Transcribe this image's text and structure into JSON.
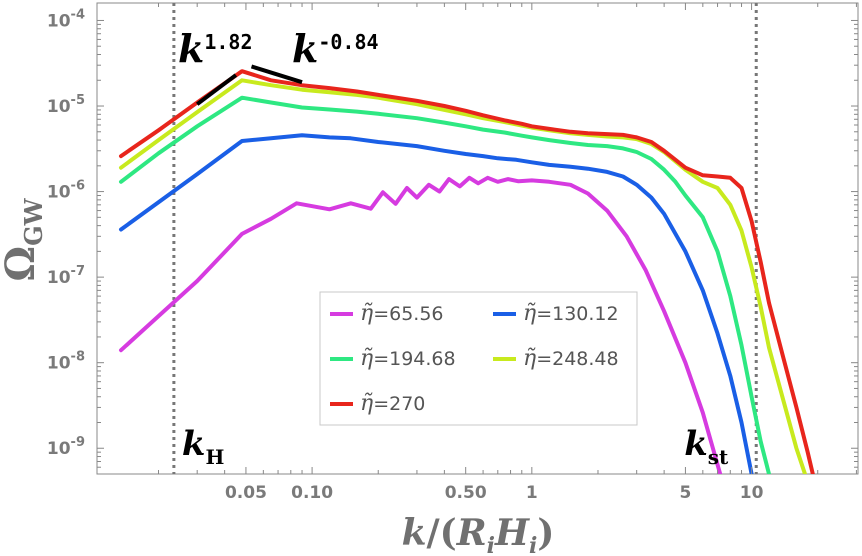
{
  "chart_data": {
    "type": "line",
    "x_scale": "log",
    "y_scale": "log",
    "xlim": [
      0.0105,
      30.5
    ],
    "ylim": [
      5e-10,
      0.00016
    ],
    "xlabel": {
      "k": "k",
      "sep": "/(",
      "R": "R",
      "i1": "i",
      "H": "H",
      "i2": "i",
      "close": ")"
    },
    "ylabel": {
      "main": "Ω",
      "sub": "GW"
    },
    "x_ticks": [
      {
        "value": 0.05,
        "label": "0.05"
      },
      {
        "value": 0.1,
        "label": "0.10"
      },
      {
        "value": 0.5,
        "label": "0.50"
      },
      {
        "value": 1,
        "label": "1"
      },
      {
        "value": 5,
        "label": "5"
      },
      {
        "value": 10,
        "label": "10"
      }
    ],
    "y_ticks": [
      {
        "value": 1e-09,
        "mantissa": "10",
        "exponent": "-9"
      },
      {
        "value": 1e-08,
        "mantissa": "10",
        "exponent": "-8"
      },
      {
        "value": 1e-07,
        "mantissa": "10",
        "exponent": "-7"
      },
      {
        "value": 1e-06,
        "mantissa": "10",
        "exponent": "-6"
      },
      {
        "value": 1e-05,
        "mantissa": "10",
        "exponent": "-5"
      },
      {
        "value": 0.0001,
        "mantissa": "10",
        "exponent": "-4"
      }
    ],
    "vlines": [
      {
        "x": 0.0235,
        "label_main": "k",
        "label_sub": "H",
        "color": "#777777"
      },
      {
        "x": 10.5,
        "label_main": "k",
        "label_sub": "st",
        "color": "#777777"
      }
    ],
    "slope_annotations": [
      {
        "label_main": "k",
        "label_exp": "1.82",
        "x1": 0.03,
        "y1": 1.05e-05,
        "x2": 0.045,
        "y2": 2.3e-05
      },
      {
        "label_main": "k",
        "label_exp": "-0.84",
        "x1": 0.053,
        "y1": 2.9e-05,
        "x2": 0.09,
        "y2": 1.9e-05
      }
    ],
    "legend": {
      "placement": "bottom-center",
      "columns": 2
    },
    "series": [
      {
        "name": "η̃=65.56",
        "eta": "η̃",
        "value_label": "=65.56",
        "color": "#d63be0",
        "x": [
          0.0135,
          0.02,
          0.03,
          0.048,
          0.065,
          0.085,
          0.12,
          0.15,
          0.185,
          0.21,
          0.24,
          0.27,
          0.3,
          0.34,
          0.38,
          0.42,
          0.47,
          0.52,
          0.57,
          0.63,
          0.7,
          0.78,
          0.87,
          1.0,
          1.2,
          1.5,
          1.8,
          2.2,
          2.7,
          3.3,
          4.0,
          5.0,
          6.0,
          7.2
        ],
        "y": [
          1.4e-08,
          3.5e-08,
          9e-08,
          3.2e-07,
          4.8e-07,
          7.3e-07,
          6.2e-07,
          7.3e-07,
          6.3e-07,
          9.8e-07,
          7.2e-07,
          1.1e-06,
          8.5e-07,
          1.2e-06,
          1e-06,
          1.4e-06,
          1.15e-06,
          1.45e-06,
          1.25e-06,
          1.45e-06,
          1.3e-06,
          1.4e-06,
          1.32e-06,
          1.35e-06,
          1.3e-06,
          1.2e-06,
          9.5e-07,
          6e-07,
          3e-07,
          1.2e-07,
          4e-08,
          1e-08,
          2.6e-09,
          5e-10
        ]
      },
      {
        "name": "η̃=130.12",
        "eta": "η̃",
        "value_label": "=130.12",
        "color": "#1a5fe6",
        "x": [
          0.0135,
          0.02,
          0.03,
          0.048,
          0.065,
          0.09,
          0.12,
          0.15,
          0.2,
          0.3,
          0.4,
          0.5,
          0.6,
          0.7,
          0.85,
          1.0,
          1.2,
          1.5,
          1.8,
          2.2,
          2.6,
          3.0,
          3.5,
          4.0,
          5.0,
          6.0,
          7.0,
          8.0,
          9.0,
          10.0
        ],
        "y": [
          3.6e-07,
          7.5e-07,
          1.6e-06,
          3.9e-06,
          4.2e-06,
          4.55e-06,
          4.3e-06,
          4.2e-06,
          3.8e-06,
          3.4e-06,
          3e-06,
          2.75e-06,
          2.6e-06,
          2.45e-06,
          2.35e-06,
          2.2e-06,
          2.05e-06,
          1.95e-06,
          1.85e-06,
          1.7e-06,
          1.5e-06,
          1.2e-06,
          8.5e-07,
          5.5e-07,
          2e-07,
          7e-08,
          2.2e-08,
          7e-09,
          2e-09,
          5e-10
        ]
      },
      {
        "name": "η̃=194.68",
        "eta": "η̃",
        "value_label": "=194.68",
        "color": "#2ee882",
        "x": [
          0.0135,
          0.02,
          0.03,
          0.048,
          0.065,
          0.09,
          0.12,
          0.16,
          0.2,
          0.3,
          0.4,
          0.5,
          0.6,
          0.75,
          0.9,
          1.0,
          1.2,
          1.5,
          1.8,
          2.2,
          2.6,
          3.0,
          3.5,
          4.0,
          4.5,
          5.0,
          6.0,
          7.0,
          8.0,
          9.0,
          10.0,
          11.0,
          12.0
        ],
        "y": [
          1.3e-06,
          2.8e-06,
          5.8e-06,
          1.25e-05,
          1.1e-05,
          9.6e-06,
          9.1e-06,
          8.6e-06,
          8.1e-06,
          7.2e-06,
          6.4e-06,
          5.8e-06,
          5.3e-06,
          4.9e-06,
          4.5e-06,
          4.3e-06,
          4e-06,
          3.7e-06,
          3.5e-06,
          3.4e-06,
          3.2e-06,
          2.9e-06,
          2.4e-06,
          1.8e-06,
          1.3e-06,
          9e-07,
          5e-07,
          2e-07,
          6e-08,
          1.6e-08,
          4e-09,
          1.2e-09,
          5e-10
        ]
      },
      {
        "name": "η̃=248.48",
        "eta": "η̃",
        "value_label": "=248.48",
        "color": "#c8ea1e",
        "x": [
          0.0135,
          0.02,
          0.03,
          0.048,
          0.065,
          0.09,
          0.12,
          0.16,
          0.2,
          0.3,
          0.4,
          0.5,
          0.6,
          0.75,
          0.9,
          1.0,
          1.2,
          1.5,
          1.8,
          2.2,
          2.6,
          3.0,
          3.5,
          4.0,
          5.0,
          6.0,
          7.0,
          8.0,
          9.0,
          10.0,
          11.0,
          12.0,
          14.0,
          16.0,
          17.5
        ],
        "y": [
          1.9e-06,
          4e-06,
          8.5e-06,
          2e-05,
          1.75e-05,
          1.55e-05,
          1.45e-05,
          1.35e-05,
          1.25e-05,
          1.05e-05,
          9e-06,
          8e-06,
          7.2e-06,
          6.5e-06,
          5.9e-06,
          5.6e-06,
          5.2e-06,
          4.8e-06,
          4.6e-06,
          4.4e-06,
          4.3e-06,
          4.1e-06,
          3.6e-06,
          2.9e-06,
          1.8e-06,
          1.3e-06,
          1.1e-06,
          7e-07,
          3.5e-07,
          1.3e-07,
          4.5e-08,
          1.5e-08,
          3.5e-09,
          1e-09,
          5e-10
        ]
      },
      {
        "name": "η̃=270",
        "eta": "η̃",
        "value_label": "=270",
        "color": "#e8251c",
        "x": [
          0.0135,
          0.02,
          0.03,
          0.048,
          0.065,
          0.09,
          0.12,
          0.16,
          0.2,
          0.3,
          0.4,
          0.5,
          0.6,
          0.75,
          0.9,
          1.0,
          1.2,
          1.5,
          1.8,
          2.2,
          2.6,
          3.0,
          3.5,
          4.0,
          5.0,
          6.0,
          7.0,
          8.0,
          9.0,
          10.0,
          11.0,
          12.0,
          14.0,
          16.0,
          18.0,
          19.0
        ],
        "y": [
          2.6e-06,
          5.2e-06,
          1.1e-05,
          2.55e-05,
          2e-05,
          1.75e-05,
          1.62e-05,
          1.48e-05,
          1.35e-05,
          1.15e-05,
          1e-05,
          8.8e-06,
          7.8e-06,
          6.8e-06,
          6.2e-06,
          5.8e-06,
          5.4e-06,
          5e-06,
          4.8e-06,
          4.7e-06,
          4.6e-06,
          4.3e-06,
          3.8e-06,
          3e-06,
          1.9e-06,
          1.55e-06,
          1.5e-06,
          1.45e-06,
          1.1e-06,
          4.5e-07,
          1.5e-07,
          5e-08,
          1.1e-08,
          3e-09,
          9e-10,
          5e-10
        ]
      }
    ]
  }
}
